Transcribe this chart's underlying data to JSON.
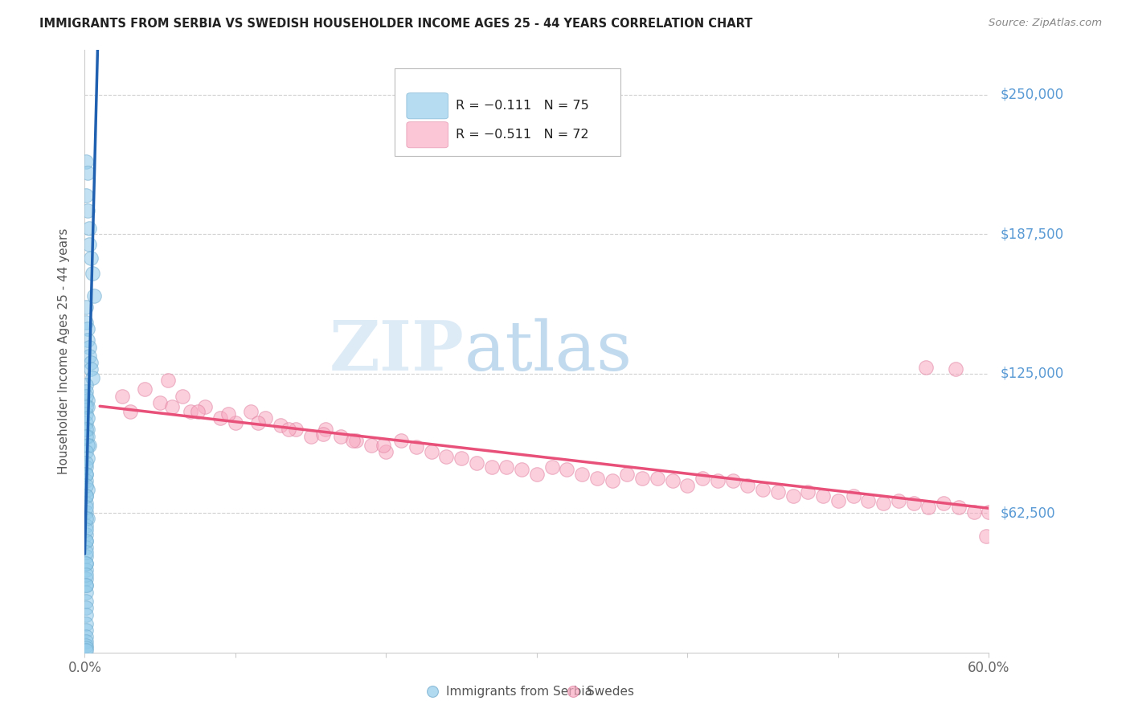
{
  "title": "IMMIGRANTS FROM SERBIA VS SWEDISH HOUSEHOLDER INCOME AGES 25 - 44 YEARS CORRELATION CHART",
  "source": "Source: ZipAtlas.com",
  "ylabel": "Householder Income Ages 25 - 44 years",
  "y_ticks": [
    62500,
    125000,
    187500,
    250000
  ],
  "y_tick_labels": [
    "$62,500",
    "$125,000",
    "$187,500",
    "$250,000"
  ],
  "xlim": [
    0.0,
    0.6
  ],
  "ylim": [
    0,
    270000
  ],
  "legend1_r": "R = −0.111",
  "legend1_n": "N = 75",
  "legend2_r": "R = −0.511",
  "legend2_n": "N = 72",
  "color_blue": "#90CAEA",
  "color_pink": "#F9A8C0",
  "color_blue_line": "#2060B0",
  "color_pink_line": "#E8507A",
  "color_blue_dash": "#AACCEE",
  "watermark_zip": "ZIP",
  "watermark_atlas": "atlas",
  "serbia_x": [
    0.001,
    0.001,
    0.002,
    0.002,
    0.003,
    0.003,
    0.004,
    0.005,
    0.006,
    0.001,
    0.001,
    0.002,
    0.002,
    0.003,
    0.003,
    0.004,
    0.004,
    0.005,
    0.001,
    0.001,
    0.002,
    0.002,
    0.001,
    0.001,
    0.002,
    0.002,
    0.003,
    0.001,
    0.001,
    0.002,
    0.001,
    0.001,
    0.002,
    0.001,
    0.002,
    0.001,
    0.001,
    0.001,
    0.002,
    0.001,
    0.001,
    0.001,
    0.002,
    0.001,
    0.001,
    0.001,
    0.001,
    0.001,
    0.001,
    0.001,
    0.001,
    0.001,
    0.001,
    0.001,
    0.001,
    0.001,
    0.001,
    0.001,
    0.001,
    0.001,
    0.001,
    0.001,
    0.001,
    0.001,
    0.001,
    0.001,
    0.001,
    0.001,
    0.001,
    0.001,
    0.001,
    0.001,
    0.001,
    0.001,
    0.001
  ],
  "serbia_y": [
    220000,
    205000,
    215000,
    198000,
    190000,
    183000,
    177000,
    170000,
    160000,
    155000,
    148000,
    145000,
    140000,
    137000,
    133000,
    130000,
    127000,
    123000,
    120000,
    117000,
    113000,
    110000,
    107000,
    103000,
    100000,
    97000,
    93000,
    115000,
    110000,
    105000,
    100000,
    97000,
    93000,
    90000,
    87000,
    83000,
    80000,
    77000,
    73000,
    70000,
    67000,
    63000,
    60000,
    57000,
    53000,
    50000,
    47000,
    43000,
    40000,
    37000,
    33000,
    30000,
    27000,
    23000,
    20000,
    17000,
    13000,
    10000,
    7000,
    5000,
    3000,
    2000,
    1000,
    85000,
    80000,
    75000,
    70000,
    65000,
    60000,
    55000,
    50000,
    45000,
    40000,
    35000,
    30000
  ],
  "swedes_x": [
    0.025,
    0.03,
    0.04,
    0.05,
    0.055,
    0.065,
    0.07,
    0.08,
    0.09,
    0.1,
    0.11,
    0.12,
    0.13,
    0.14,
    0.15,
    0.16,
    0.17,
    0.18,
    0.19,
    0.2,
    0.21,
    0.22,
    0.23,
    0.24,
    0.25,
    0.26,
    0.27,
    0.28,
    0.29,
    0.3,
    0.31,
    0.32,
    0.33,
    0.34,
    0.35,
    0.36,
    0.37,
    0.38,
    0.39,
    0.4,
    0.41,
    0.42,
    0.43,
    0.44,
    0.45,
    0.46,
    0.47,
    0.48,
    0.49,
    0.5,
    0.51,
    0.52,
    0.53,
    0.54,
    0.55,
    0.56,
    0.57,
    0.58,
    0.59,
    0.6,
    0.058,
    0.075,
    0.095,
    0.115,
    0.135,
    0.158,
    0.178,
    0.198,
    0.558,
    0.578,
    0.598,
    0.61
  ],
  "swedes_y": [
    115000,
    108000,
    118000,
    112000,
    122000,
    115000,
    108000,
    110000,
    105000,
    103000,
    108000,
    105000,
    102000,
    100000,
    97000,
    100000,
    97000,
    95000,
    93000,
    90000,
    95000,
    92000,
    90000,
    88000,
    87000,
    85000,
    83000,
    83000,
    82000,
    80000,
    83000,
    82000,
    80000,
    78000,
    77000,
    80000,
    78000,
    78000,
    77000,
    75000,
    78000,
    77000,
    77000,
    75000,
    73000,
    72000,
    70000,
    72000,
    70000,
    68000,
    70000,
    68000,
    67000,
    68000,
    67000,
    65000,
    67000,
    65000,
    63000,
    63000,
    110000,
    108000,
    107000,
    103000,
    100000,
    98000,
    95000,
    93000,
    128000,
    127000,
    52000,
    50000
  ]
}
